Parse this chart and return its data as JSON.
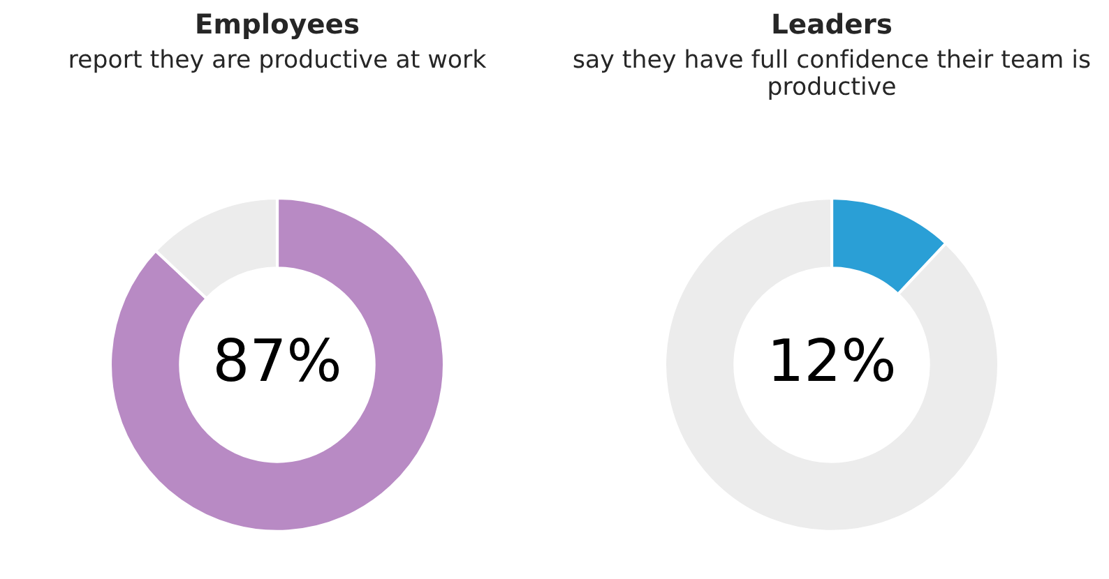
{
  "chart_data": [
    {
      "type": "donut",
      "title": "Employees",
      "subtitle": "report they are productive at work",
      "categories": [
        null,
        null
      ],
      "values": [
        87,
        13
      ],
      "colors": [
        "#b88ac4",
        "#ececec"
      ],
      "annotations": [
        "87%"
      ]
    },
    {
      "type": "donut",
      "title": "Leaders",
      "subtitle": "say they have full confidence their team is productive",
      "categories": [
        null,
        null
      ],
      "values": [
        12,
        88
      ],
      "colors": [
        "#2a9fd6",
        "#ececec"
      ],
      "annotations": [
        "12%"
      ]
    }
  ]
}
